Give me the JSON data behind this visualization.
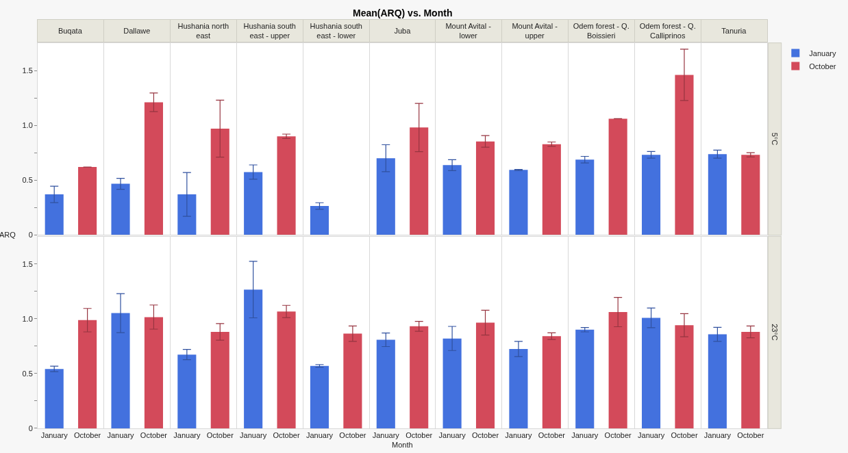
{
  "chart_data": [
    {
      "type": "bar",
      "title": "Mean(ARQ) vs. Month",
      "ylabel": "ARQ",
      "categories": [
        "Buqata",
        "Dallawe",
        "Hushania north east",
        "Hushania south east - upper",
        "Hushania south east - lower",
        "Juba",
        "Mount Avital - lower",
        "Mount Avital - upper",
        "Odem forest - Q. Boissieri",
        "Odem forest - Q. Calliprinos",
        "Tanuria"
      ],
      "series": [
        {
          "name": "January",
          "color": "#4371de",
          "values": [
            0.37,
            0.467,
            0.37,
            0.574,
            0.264,
            0.7,
            0.637,
            0.593,
            0.687,
            0.731,
            0.737
          ],
          "errors": [
            0.075,
            0.05,
            0.2,
            0.065,
            0.03,
            0.123,
            0.05,
            0.005,
            0.03,
            0.03,
            0.037
          ]
        },
        {
          "name": "October",
          "color": "#d34a5a",
          "values": [
            0.62,
            1.21,
            0.97,
            0.9,
            null,
            0.98,
            0.853,
            0.828,
            1.061,
            1.46,
            0.731
          ],
          "errors": [
            null,
            0.085,
            0.26,
            0.02,
            null,
            0.22,
            0.053,
            0.02,
            null,
            0.234,
            0.02
          ]
        }
      ],
      "ylim": [
        0,
        1.75
      ],
      "yticks": [
        0,
        {
          "value": 0.25,
          "label": null
        },
        0.5,
        {
          "value": 0.75,
          "label": null
        },
        {
          "value": 1,
          "label": "1.0"
        },
        {
          "value": 1.25,
          "label": null
        },
        1.5
      ],
      "grid": "x",
      "legend": "right",
      "annotations": [
        "5°C"
      ]
    },
    {
      "type": "bar",
      "xlabel": "Month",
      "categories": [
        null,
        null,
        null,
        null,
        null,
        null,
        null,
        null,
        null,
        null,
        null
      ],
      "series": [
        {
          "name": "January",
          "color": "#4371de",
          "values": [
            0.542,
            1.051,
            0.673,
            1.266,
            0.57,
            0.808,
            0.82,
            0.724,
            0.9,
            1.008,
            0.858
          ],
          "errors": [
            0.025,
            0.178,
            0.047,
            0.258,
            0.012,
            0.062,
            0.11,
            0.07,
            0.02,
            0.09,
            0.064
          ]
        },
        {
          "name": "October",
          "color": "#d34a5a",
          "values": [
            0.987,
            1.015,
            0.88,
            1.066,
            0.864,
            0.931,
            0.964,
            0.841,
            1.061,
            0.941,
            0.88
          ],
          "errors": [
            0.107,
            0.11,
            0.076,
            0.056,
            0.07,
            0.045,
            0.113,
            0.03,
            0.134,
            0.105,
            0.054
          ]
        }
      ],
      "ylim": [
        0,
        1.75
      ],
      "yticks": [
        0,
        {
          "value": 0.25,
          "label": null
        },
        0.5,
        {
          "value": 0.75,
          "label": null
        },
        {
          "value": 1,
          "label": "1.0"
        },
        {
          "value": 1.25,
          "label": null
        },
        1.5
      ],
      "grid": "x",
      "annotations": [
        "23°C"
      ]
    }
  ]
}
